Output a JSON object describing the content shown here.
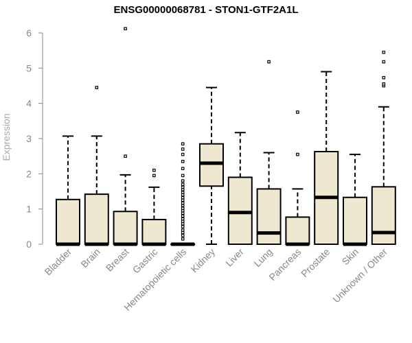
{
  "chart_data": {
    "type": "box",
    "title": "ENSG00000068781 - STON1-GTF2A1L",
    "xlabel": "",
    "ylabel": "Expression",
    "ylim": [
      0,
      6
    ],
    "yticks": [
      0,
      1,
      2,
      3,
      4,
      5,
      6
    ],
    "box_fill": "#efe8d0",
    "line_color": "#000000",
    "axis_color": "#888888",
    "categories": [
      "Bladder",
      "Brain",
      "Breast",
      "Gastric",
      "Hematopoietic cells",
      "Kidney",
      "Liver",
      "Lung",
      "Pancreas",
      "Prostate",
      "Skin",
      "Unknown / Other"
    ],
    "boxes": [
      {
        "category": "Bladder",
        "whisker_low": 0,
        "q1": 0,
        "median": 0,
        "q3": 1.27,
        "whisker_high": 3.07,
        "outliers": []
      },
      {
        "category": "Brain",
        "whisker_low": 0,
        "q1": 0,
        "median": 0,
        "q3": 1.42,
        "whisker_high": 3.07,
        "outliers": [
          4.45
        ]
      },
      {
        "category": "Breast",
        "whisker_low": 0,
        "q1": 0,
        "median": 0,
        "q3": 0.93,
        "whisker_high": 1.97,
        "outliers": [
          2.5,
          6.12
        ]
      },
      {
        "category": "Gastric",
        "whisker_low": 0,
        "q1": 0,
        "median": 0,
        "q3": 0.7,
        "whisker_high": 1.62,
        "outliers": [
          1.95,
          2.1
        ]
      },
      {
        "category": "Hematopoietic cells",
        "whisker_low": 0,
        "q1": 0,
        "median": 0,
        "q3": 0,
        "whisker_high": 0,
        "outliers": [
          0.15,
          0.25,
          0.33,
          0.4,
          0.5,
          0.58,
          0.65,
          0.72,
          0.8,
          0.88,
          0.95,
          1.02,
          1.1,
          1.17,
          1.25,
          1.32,
          1.4,
          1.47,
          1.55,
          1.62,
          1.7,
          1.8,
          1.95,
          2.15,
          2.35,
          2.55,
          2.7,
          2.85
        ]
      },
      {
        "category": "Kidney",
        "whisker_low": 0,
        "q1": 1.65,
        "median": 2.3,
        "q3": 2.85,
        "whisker_high": 4.45,
        "outliers": []
      },
      {
        "category": "Liver",
        "whisker_low": 0,
        "q1": 0,
        "median": 0.9,
        "q3": 1.9,
        "whisker_high": 3.17,
        "outliers": []
      },
      {
        "category": "Lung",
        "whisker_low": 0,
        "q1": 0,
        "median": 0.32,
        "q3": 1.57,
        "whisker_high": 2.6,
        "outliers": [
          5.18
        ]
      },
      {
        "category": "Pancreas",
        "whisker_low": 0,
        "q1": 0,
        "median": 0,
        "q3": 0.77,
        "whisker_high": 1.57,
        "outliers": [
          2.55,
          3.75
        ]
      },
      {
        "category": "Prostate",
        "whisker_low": 0,
        "q1": 0,
        "median": 1.33,
        "q3": 2.63,
        "whisker_high": 4.9,
        "outliers": []
      },
      {
        "category": "Skin",
        "whisker_low": 0,
        "q1": 0,
        "median": 0,
        "q3": 1.33,
        "whisker_high": 2.55,
        "outliers": []
      },
      {
        "category": "Unknown / Other",
        "whisker_low": 0,
        "q1": 0,
        "median": 0.33,
        "q3": 1.63,
        "whisker_high": 3.9,
        "outliers": [
          4.5,
          4.55,
          4.73,
          5.18,
          5.45
        ]
      }
    ]
  }
}
